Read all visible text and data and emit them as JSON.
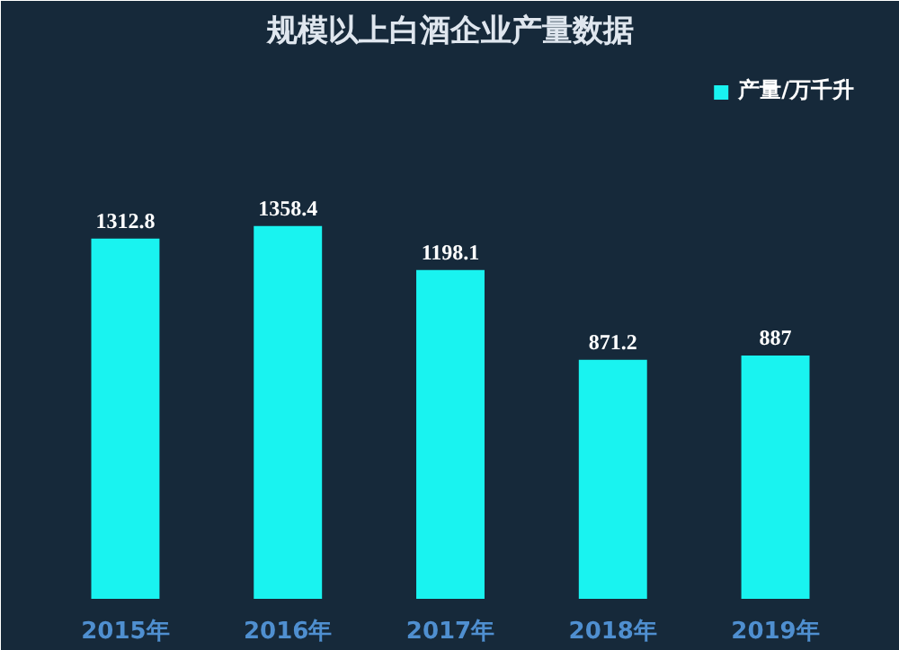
{
  "chart_data": {
    "type": "bar",
    "title": "规模以上白酒企业产量数据",
    "categories": [
      "2015年",
      "2016年",
      "2017年",
      "2018年",
      "2019年"
    ],
    "series": [
      {
        "name": "产量/万千升",
        "color": "#19f3f0",
        "values": [
          1312.8,
          1358.4,
          1198.1,
          871.2,
          887
        ]
      }
    ],
    "data_labels": true,
    "legend": "top right",
    "grid": false
  }
}
